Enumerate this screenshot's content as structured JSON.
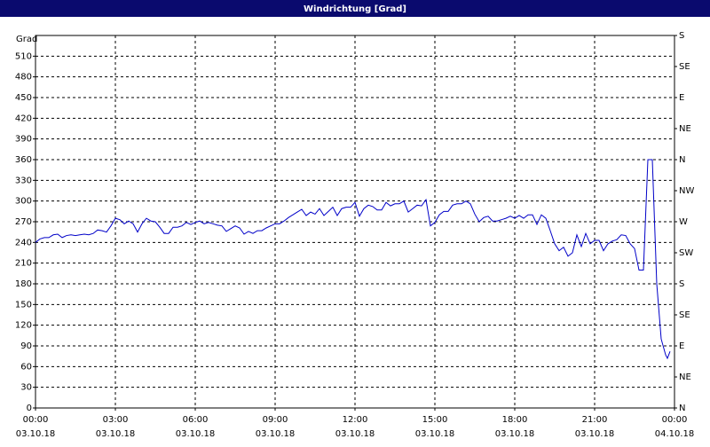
{
  "chart_data": {
    "type": "line",
    "title": "Windrichtung [Grad]",
    "y_label": "Grad",
    "xlim": [
      0,
      1440
    ],
    "xticks": [
      {
        "value": 0,
        "label": "00:00",
        "date": "03.10.18"
      },
      {
        "value": 180,
        "label": "03:00",
        "date": "03.10.18"
      },
      {
        "value": 360,
        "label": "06:00",
        "date": "03.10.18"
      },
      {
        "value": 540,
        "label": "09:00",
        "date": "03.10.18"
      },
      {
        "value": 720,
        "label": "12:00",
        "date": "03.10.18"
      },
      {
        "value": 900,
        "label": "15:00",
        "date": "03.10.18"
      },
      {
        "value": 1080,
        "label": "18:00",
        "date": "03.10.18"
      },
      {
        "value": 1260,
        "label": "21:00",
        "date": "03.10.18"
      },
      {
        "value": 1440,
        "label": "00:00",
        "date": "04.10.18"
      }
    ],
    "ylim": [
      0,
      540
    ],
    "yticks": [
      0,
      30,
      60,
      90,
      120,
      150,
      180,
      210,
      240,
      270,
      300,
      330,
      360,
      390,
      420,
      450,
      480,
      510
    ],
    "y2lim": [
      0,
      540
    ],
    "y2ticks": [
      {
        "value": 0,
        "label": "N"
      },
      {
        "value": 45,
        "label": "NE"
      },
      {
        "value": 90,
        "label": "E"
      },
      {
        "value": 135,
        "label": "SE"
      },
      {
        "value": 180,
        "label": "S"
      },
      {
        "value": 225,
        "label": "SW"
      },
      {
        "value": 270,
        "label": "W"
      },
      {
        "value": 315,
        "label": "NW"
      },
      {
        "value": 360,
        "label": "N"
      },
      {
        "value": 405,
        "label": "NE"
      },
      {
        "value": 450,
        "label": "E"
      },
      {
        "value": 495,
        "label": "SE"
      },
      {
        "value": 540,
        "label": "S"
      }
    ],
    "grid": true,
    "x": [
      0,
      10,
      20,
      30,
      40,
      50,
      60,
      70,
      80,
      90,
      100,
      110,
      120,
      130,
      140,
      150,
      160,
      170,
      180,
      190,
      200,
      210,
      220,
      230,
      240,
      250,
      260,
      270,
      280,
      290,
      300,
      310,
      320,
      330,
      340,
      350,
      360,
      370,
      380,
      390,
      400,
      410,
      420,
      430,
      440,
      450,
      460,
      470,
      480,
      490,
      500,
      510,
      520,
      530,
      540,
      550,
      560,
      570,
      580,
      590,
      600,
      610,
      620,
      630,
      640,
      650,
      660,
      670,
      680,
      690,
      700,
      710,
      720,
      730,
      740,
      750,
      760,
      770,
      780,
      790,
      800,
      810,
      820,
      830,
      840,
      850,
      860,
      870,
      880,
      890,
      900,
      910,
      920,
      930,
      940,
      950,
      960,
      970,
      980,
      990,
      1000,
      1010,
      1020,
      1030,
      1040,
      1050,
      1060,
      1070,
      1080,
      1090,
      1100,
      1110,
      1120,
      1130,
      1140,
      1150,
      1160,
      1170,
      1180,
      1190,
      1200,
      1210,
      1220,
      1230,
      1240,
      1250,
      1260,
      1270,
      1280,
      1290,
      1300,
      1310,
      1320,
      1330,
      1340,
      1350,
      1360,
      1370,
      1380,
      1390,
      1400,
      1410,
      1420,
      1424,
      1430
    ],
    "series": [
      {
        "color": "#0000c8",
        "values": [
          240,
          245,
          247,
          247,
          251,
          252,
          247,
          250,
          251,
          250,
          251,
          252,
          251,
          253,
          258,
          257,
          255,
          264,
          275,
          273,
          267,
          271,
          267,
          255,
          267,
          275,
          271,
          270,
          262,
          253,
          253,
          262,
          262,
          264,
          269,
          266,
          269,
          271,
          267,
          269,
          267,
          265,
          264,
          256,
          260,
          264,
          261,
          252,
          256,
          253,
          257,
          257,
          261,
          264,
          267,
          267,
          271,
          276,
          280,
          284,
          288,
          279,
          284,
          281,
          289,
          279,
          285,
          291,
          279,
          289,
          291,
          291,
          298,
          278,
          289,
          294,
          292,
          287,
          287,
          298,
          293,
          296,
          296,
          300,
          284,
          289,
          294,
          293,
          302,
          264,
          269,
          280,
          285,
          285,
          294,
          296,
          296,
          300,
          296,
          281,
          270,
          276,
          278,
          271,
          271,
          273,
          275,
          278,
          275,
          279,
          275,
          280,
          280,
          266,
          280,
          275,
          257,
          238,
          228,
          233,
          220,
          225,
          251,
          234,
          253,
          238,
          243,
          243,
          228,
          238,
          242,
          244,
          251,
          250,
          238,
          231,
          200,
          200,
          360,
          360,
          180,
          100,
          77,
          72,
          82
        ]
      }
    ]
  }
}
